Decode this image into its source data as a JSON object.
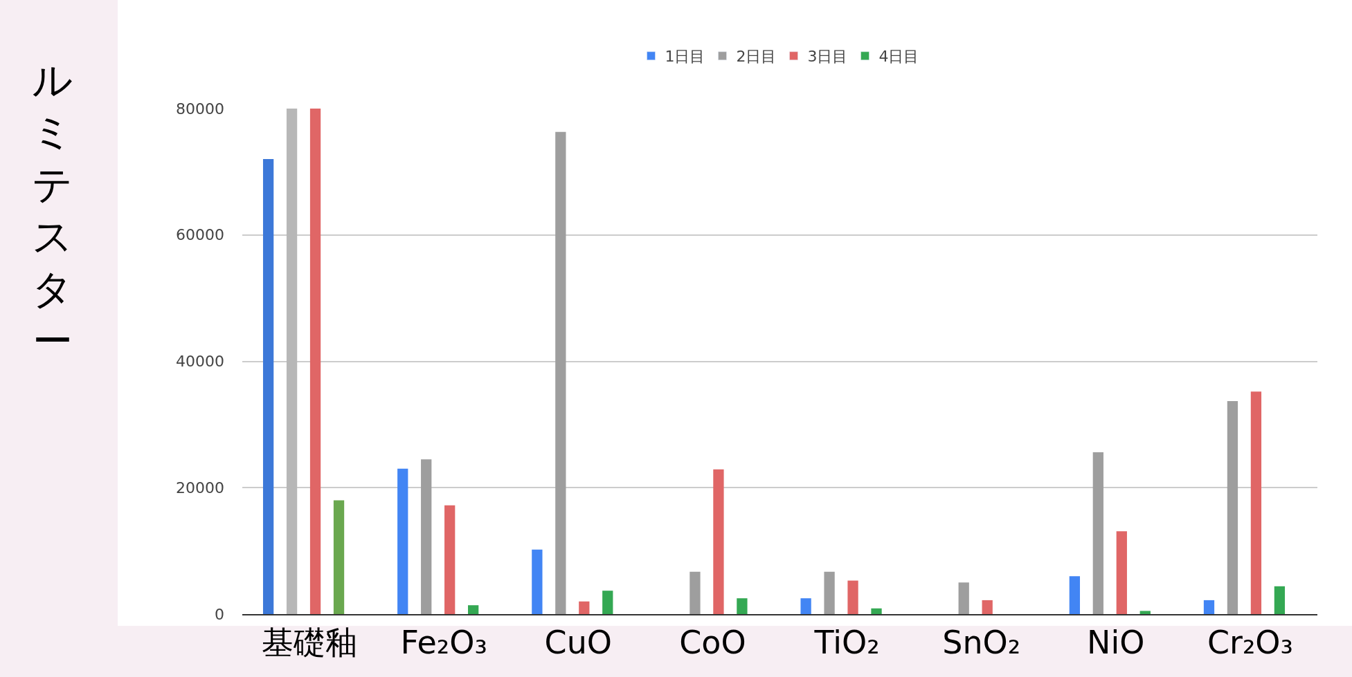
{
  "chart_data": {
    "type": "bar",
    "ylabel": "ルミテスター",
    "categories": [
      "基礎釉",
      "Fe₂O₃",
      "CuO",
      "CoO",
      "TiO₂",
      "SnO₂",
      "NiO",
      "Cr₂O₃"
    ],
    "series": [
      {
        "name": "1日目",
        "color": "#4285f4",
        "colors": [
          "#3c78d8",
          "#4285f4",
          "#4285f4",
          "#4285f4",
          "#4285f4",
          "#4285f4",
          "#4285f4",
          "#4285f4"
        ],
        "values": [
          72000,
          23000,
          10200,
          null,
          2500,
          null,
          6000,
          2200
        ]
      },
      {
        "name": "2日目",
        "color": "#9e9e9e",
        "colors": [
          "#b7b7b7",
          "#9e9e9e",
          "#9e9e9e",
          "#9e9e9e",
          "#9e9e9e",
          "#9e9e9e",
          "#9e9e9e",
          "#9e9e9e"
        ],
        "values": [
          80000,
          24500,
          76300,
          6700,
          6700,
          5000,
          25600,
          33700
        ]
      },
      {
        "name": "3日目",
        "color": "#e06666",
        "colors": [
          "#e06666",
          "#e06666",
          "#e06666",
          "#e06666",
          "#e06666",
          "#e06666",
          "#e06666",
          "#e06666"
        ],
        "values": [
          80000,
          17200,
          2000,
          22900,
          5300,
          2200,
          13100,
          35200
        ]
      },
      {
        "name": "4日目",
        "color": "#34a853",
        "colors": [
          "#6aa84f",
          "#34a853",
          "#34a853",
          "#34a853",
          "#34a853",
          "#34a853",
          "#34a853",
          "#34a853"
        ],
        "values": [
          18000,
          1400,
          3700,
          2500,
          900,
          null,
          500,
          4400
        ]
      }
    ],
    "ylim": [
      0,
      80000
    ],
    "yticks": [
      0,
      20000,
      40000,
      60000,
      80000
    ],
    "grid": "y",
    "legend": "top"
  }
}
